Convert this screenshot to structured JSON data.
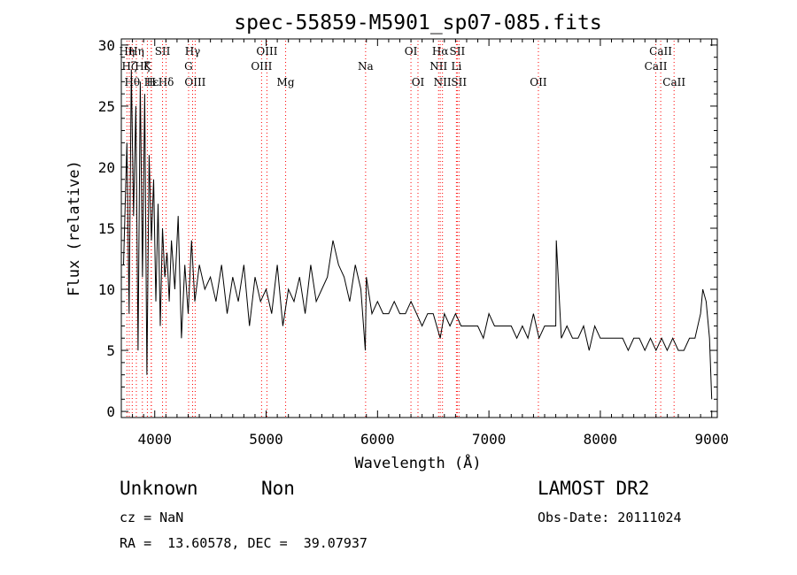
{
  "chart_data": {
    "type": "line",
    "title": "spec-55859-M5901_sp07-085.fits",
    "xlabel": "Wavelength (Å)",
    "ylabel": "Flux (relative)",
    "xlim": [
      3700,
      9050
    ],
    "ylim": [
      -0.5,
      30.5
    ],
    "x_ticks": [
      4000,
      5000,
      6000,
      7000,
      8000,
      9000
    ],
    "y_ticks": [
      0,
      5,
      10,
      15,
      20,
      25,
      30
    ],
    "grid": false,
    "legend": "none",
    "line_color": "#000000",
    "marker_color": "#ff0000",
    "series": [
      {
        "x": [
          3720,
          3750,
          3770,
          3790,
          3810,
          3830,
          3850,
          3870,
          3890,
          3910,
          3930,
          3950,
          3970,
          3990,
          4010,
          4030,
          4050,
          4070,
          4090,
          4110,
          4130,
          4150,
          4180,
          4210,
          4240,
          4270,
          4300,
          4330,
          4360,
          4400,
          4450,
          4500,
          4550,
          4600,
          4650,
          4700,
          4750,
          4800,
          4850,
          4900,
          4950,
          5000,
          5050,
          5100,
          5150,
          5200,
          5250,
          5300,
          5350,
          5400,
          5450,
          5500,
          5550,
          5600,
          5650,
          5700,
          5750,
          5800,
          5850,
          5890,
          5900,
          5950,
          6000,
          6050,
          6100,
          6150,
          6200,
          6250,
          6300,
          6350,
          6400,
          6450,
          6500,
          6563,
          6600,
          6650,
          6700,
          6750,
          6800,
          6850,
          6900,
          6950,
          7000,
          7050,
          7100,
          7150,
          7200,
          7250,
          7300,
          7350,
          7400,
          7450,
          7500,
          7550,
          7600,
          7605,
          7650,
          7700,
          7750,
          7800,
          7850,
          7900,
          7950,
          8000,
          8050,
          8100,
          8150,
          8200,
          8250,
          8300,
          8350,
          8400,
          8450,
          8500,
          8550,
          8600,
          8650,
          8700,
          8750,
          8800,
          8850,
          8900,
          8920,
          8950,
          8980,
          9000
        ],
        "y": [
          12,
          22,
          8,
          28,
          16,
          25,
          5,
          27,
          11,
          26,
          3,
          21,
          14,
          19,
          9,
          17,
          7,
          15,
          11,
          13,
          9,
          14,
          10,
          16,
          6,
          12,
          8,
          14,
          9,
          12,
          10,
          11,
          9,
          12,
          8,
          11,
          9,
          12,
          7,
          11,
          9,
          10,
          8,
          12,
          7,
          10,
          9,
          11,
          8,
          12,
          9,
          10,
          11,
          14,
          12,
          11,
          9,
          12,
          10,
          5,
          11,
          8,
          9,
          8,
          8,
          9,
          8,
          8,
          9,
          8,
          7,
          8,
          8,
          6,
          8,
          7,
          8,
          7,
          7,
          7,
          7,
          6,
          8,
          7,
          7,
          7,
          7,
          6,
          7,
          6,
          8,
          6,
          7,
          7,
          7,
          14,
          6,
          7,
          6,
          6,
          7,
          5,
          7,
          6,
          6,
          6,
          6,
          6,
          5,
          6,
          6,
          5,
          6,
          5,
          6,
          5,
          6,
          5,
          5,
          6,
          6,
          8,
          10,
          9,
          6,
          1
        ]
      }
    ],
    "line_markers": [
      {
        "x": 3750,
        "label": "Hη",
        "row": 0
      },
      {
        "x": 3771,
        "label": "Hζ",
        "row": 1
      },
      {
        "x": 3798,
        "label": "Hθ",
        "row": 2
      },
      {
        "x": 3835,
        "label": "Hη",
        "row": 0
      },
      {
        "x": 3889,
        "label": "Hζ",
        "row": 1
      },
      {
        "x": 3934,
        "label": "K",
        "row": 1
      },
      {
        "x": 3968,
        "label": "H",
        "row": 2
      },
      {
        "x": 3970,
        "label": "Hε",
        "row": 2
      },
      {
        "x": 4070,
        "label": "SII",
        "row": 0
      },
      {
        "x": 4102,
        "label": "Hδ",
        "row": 2
      },
      {
        "x": 4304,
        "label": "G",
        "row": 1
      },
      {
        "x": 4340,
        "label": "Hγ",
        "row": 0
      },
      {
        "x": 4363,
        "label": "OIII",
        "row": 2
      },
      {
        "x": 4959,
        "label": "OIII",
        "row": 1
      },
      {
        "x": 5007,
        "label": "OIII",
        "row": 0
      },
      {
        "x": 5175,
        "label": "Mg",
        "row": 2
      },
      {
        "x": 5893,
        "label": "Na",
        "row": 1
      },
      {
        "x": 6300,
        "label": "OI",
        "row": 0
      },
      {
        "x": 6363,
        "label": "OI",
        "row": 2
      },
      {
        "x": 6548,
        "label": "NII",
        "row": 1
      },
      {
        "x": 6563,
        "label": "Hα",
        "row": 0
      },
      {
        "x": 6583,
        "label": "NII",
        "row": 2
      },
      {
        "x": 6708,
        "label": "Li",
        "row": 1
      },
      {
        "x": 6716,
        "label": "SII",
        "row": 0
      },
      {
        "x": 6731,
        "label": "SII",
        "row": 2
      },
      {
        "x": 7444,
        "label": "OII",
        "row": 2
      },
      {
        "x": 8498,
        "label": "CaII",
        "row": 1
      },
      {
        "x": 8542,
        "label": "CaII",
        "row": 0
      },
      {
        "x": 8662,
        "label": "CaII",
        "row": 2
      }
    ]
  },
  "info": {
    "class_label": "Unknown",
    "subclass_label": "Non",
    "survey_label": "LAMOST DR2",
    "cz_text": "cz = NaN",
    "obs_date_text": "Obs-Date: 20111024",
    "coords_text": "RA =  13.60578, DEC =  39.07937"
  }
}
